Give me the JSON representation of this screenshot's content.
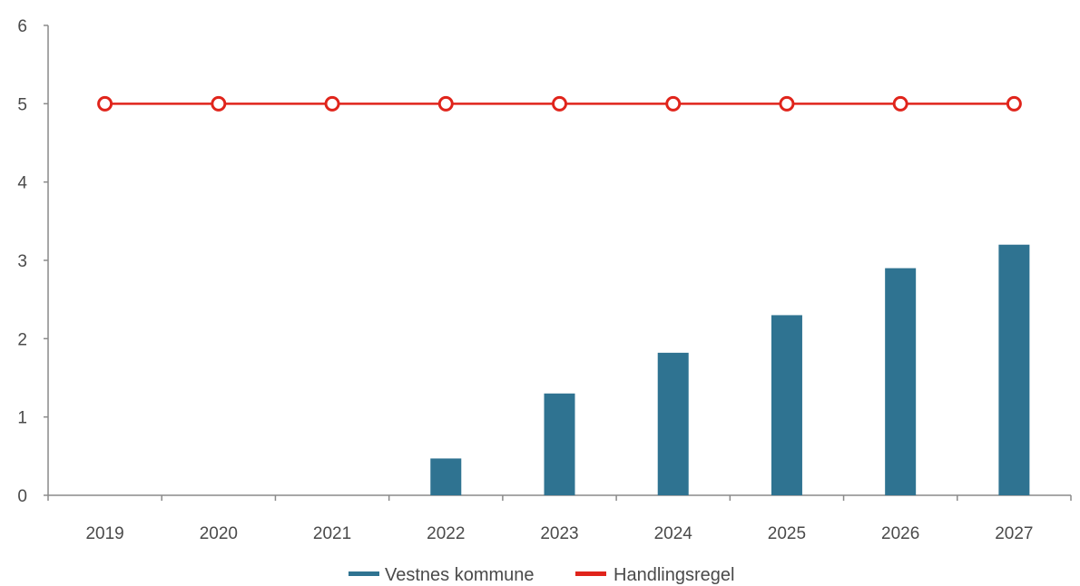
{
  "chart_data": {
    "type": "bar",
    "categories": [
      "2019",
      "2020",
      "2021",
      "2022",
      "2023",
      "2024",
      "2025",
      "2026",
      "2027"
    ],
    "series": [
      {
        "name": "Vestnes kommune",
        "kind": "bar",
        "color": "#2f7391",
        "values": [
          0,
          0,
          0,
          0.47,
          1.3,
          1.82,
          2.3,
          2.9,
          3.2
        ]
      },
      {
        "name": "Handlingsregel",
        "kind": "line",
        "color": "#e0241b",
        "values": [
          5,
          5,
          5,
          5,
          5,
          5,
          5,
          5,
          5
        ]
      }
    ],
    "title": "",
    "xlabel": "",
    "ylabel": "",
    "ylim": [
      0,
      6
    ],
    "yticks": [
      "0",
      "1",
      "2",
      "3",
      "4",
      "5",
      "6"
    ],
    "grid": false,
    "legend_position": "bottom-center"
  }
}
